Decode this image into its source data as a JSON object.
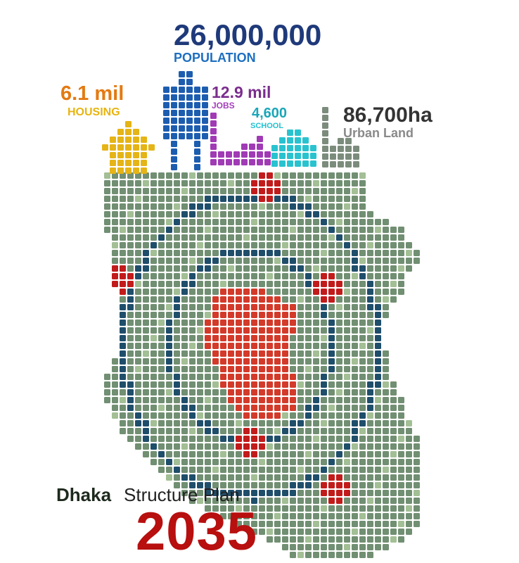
{
  "stats": {
    "population": {
      "value": "26,000,000",
      "label": "POPULATION",
      "color": "#1f3a7a",
      "label_color": "#1e6fc0"
    },
    "housing": {
      "value": "6.1 mil",
      "label": "HOUSING",
      "color": "#e37a12",
      "label_color": "#e8b410"
    },
    "jobs": {
      "value": "12.9 mil",
      "label": "JOBS",
      "color": "#7b2d8e",
      "label_color": "#a33fb8"
    },
    "school": {
      "value": "4,600",
      "label": "SCHOOL",
      "color": "#1aa6b8",
      "label_color": "#1fc2d0"
    },
    "urban_land": {
      "value": "86,700ha",
      "label": "Urban Land",
      "color": "#333333",
      "label_color": "#8a8a8a"
    }
  },
  "title": {
    "city": "Dhaka",
    "rest": "Structure Plan",
    "year": "2035",
    "city_color": "#1d2a1d",
    "rest_color": "#222222",
    "year_color": "#b80f0f"
  },
  "colors": {
    "land": "#718f72",
    "land_light": "#a3bf95",
    "ring": "#1f4e6b",
    "core": "#d33a2a",
    "hub": "#c21b1b",
    "urban_icon": "#7c8c7c",
    "population_icon": "#1d5db0",
    "housing_icon": "#e5b416",
    "jobs_icon": "#a03ab5",
    "school_icon": "#29c3cf"
  },
  "icons": [
    "housing-icon",
    "population-person-icon",
    "jobs-icon",
    "school-icon",
    "urban-land-icon"
  ]
}
